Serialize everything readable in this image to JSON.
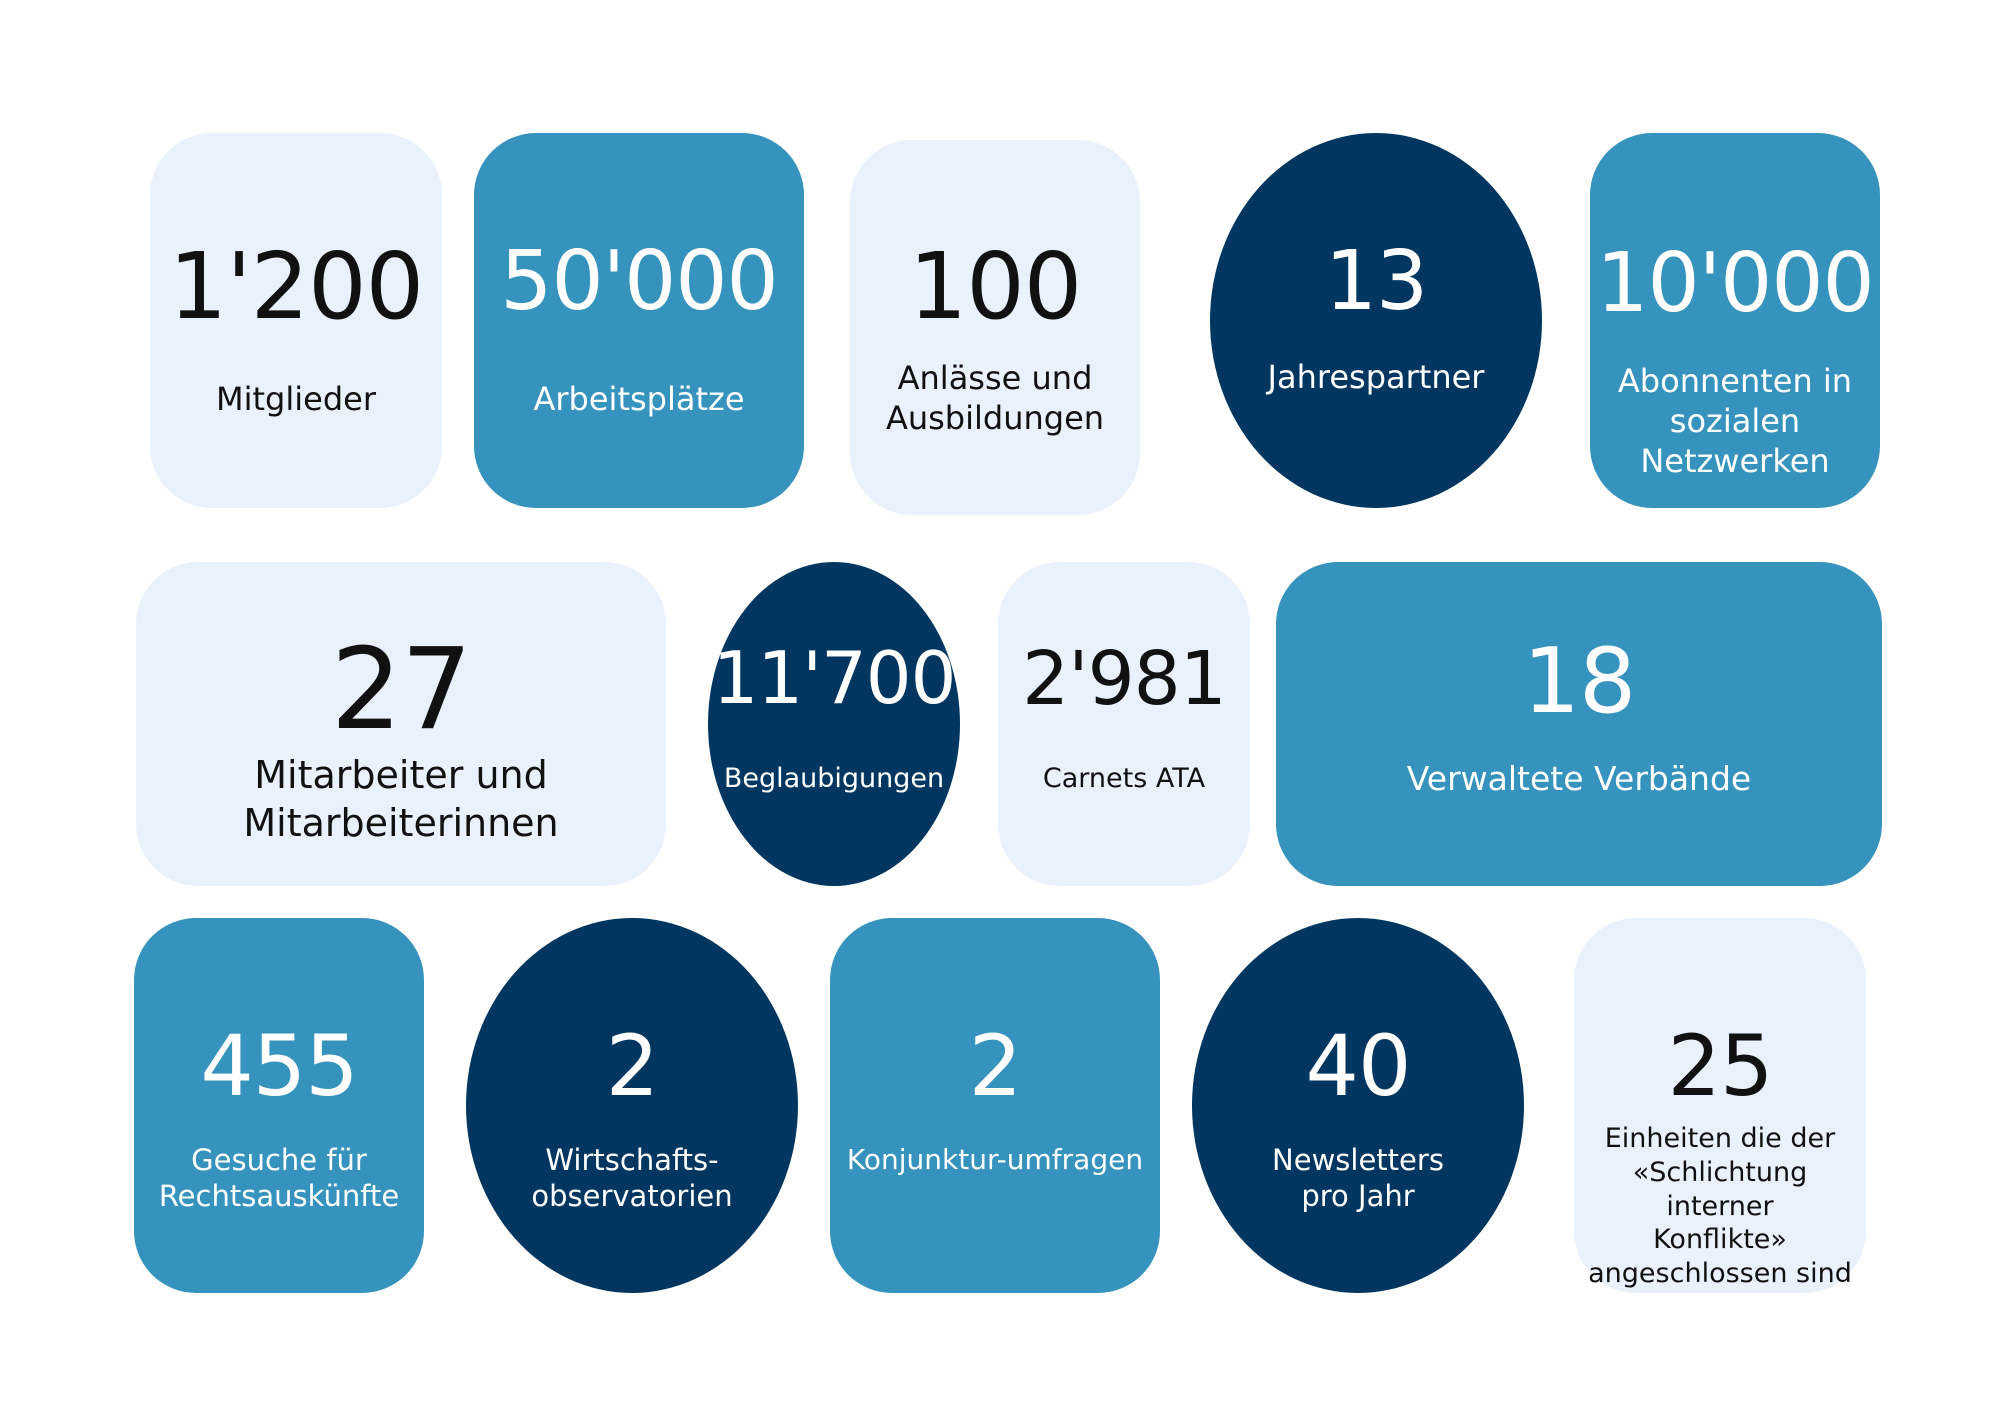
{
  "stats": [
    {
      "number": "1'200",
      "label": "Mitglieder",
      "style": "light"
    },
    {
      "number": "50'000",
      "label": "Arbeitsplätze",
      "style": "mid"
    },
    {
      "number": "100",
      "label": "Anlässe und\nAusbildungen",
      "style": "light"
    },
    {
      "number": "13",
      "label": "Jahrespartner",
      "style": "dark"
    },
    {
      "number": "10'000",
      "label": "Abonnenten in\nsozialen\nNetzwerken",
      "style": "mid"
    },
    {
      "number": "27",
      "label": "Mitarbeiter und\nMitarbeiterinnen",
      "style": "light"
    },
    {
      "number": "11'700",
      "label": "Beglaubigungen",
      "style": "dark"
    },
    {
      "number": "2'981",
      "label": "Carnets ATA",
      "style": "light"
    },
    {
      "number": "18",
      "label": "Verwaltete Verbände",
      "style": "mid"
    },
    {
      "number": "455",
      "label": "Gesuche für\nRechtsauskünfte",
      "style": "mid"
    },
    {
      "number": "2",
      "label": "Wirtschafts-\nobservatorien",
      "style": "dark"
    },
    {
      "number": "2",
      "label": "Konjunktur-umfragen",
      "style": "mid"
    },
    {
      "number": "40",
      "label": "Newsletters\npro Jahr",
      "style": "dark"
    },
    {
      "number": "25",
      "label": "Einheiten die der\n«Schlichtung interner\nKonflikte»\nangeschlossen sind",
      "style": "light"
    }
  ],
  "colors": {
    "light": "#e9f1fc",
    "mid": "#3593bd",
    "dark": "#013660"
  }
}
